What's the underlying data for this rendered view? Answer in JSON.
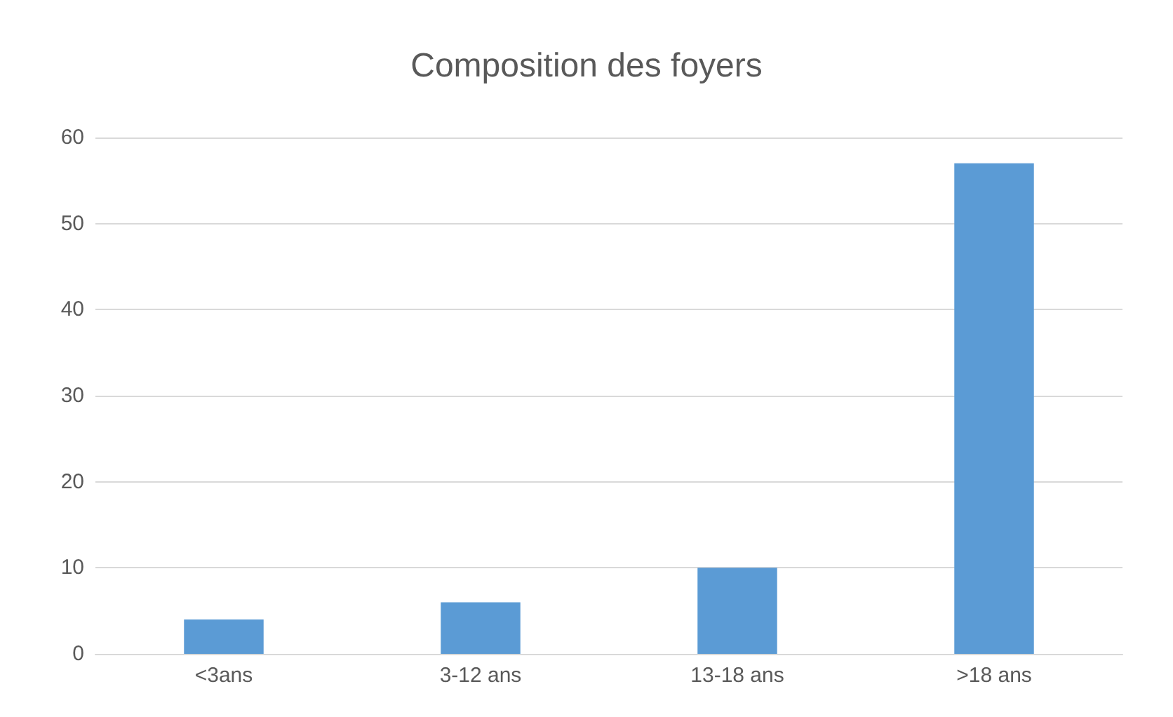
{
  "chart_data": {
    "type": "bar",
    "title": "Composition des foyers",
    "categories": [
      "<3ans",
      "3-12 ans",
      "13-18 ans",
      ">18 ans"
    ],
    "values": [
      4,
      6,
      10,
      57
    ],
    "color": "#5b9bd5",
    "ylim": [
      0,
      60
    ],
    "yticks": [
      0,
      10,
      20,
      30,
      40,
      50,
      60
    ],
    "grid": "y"
  }
}
